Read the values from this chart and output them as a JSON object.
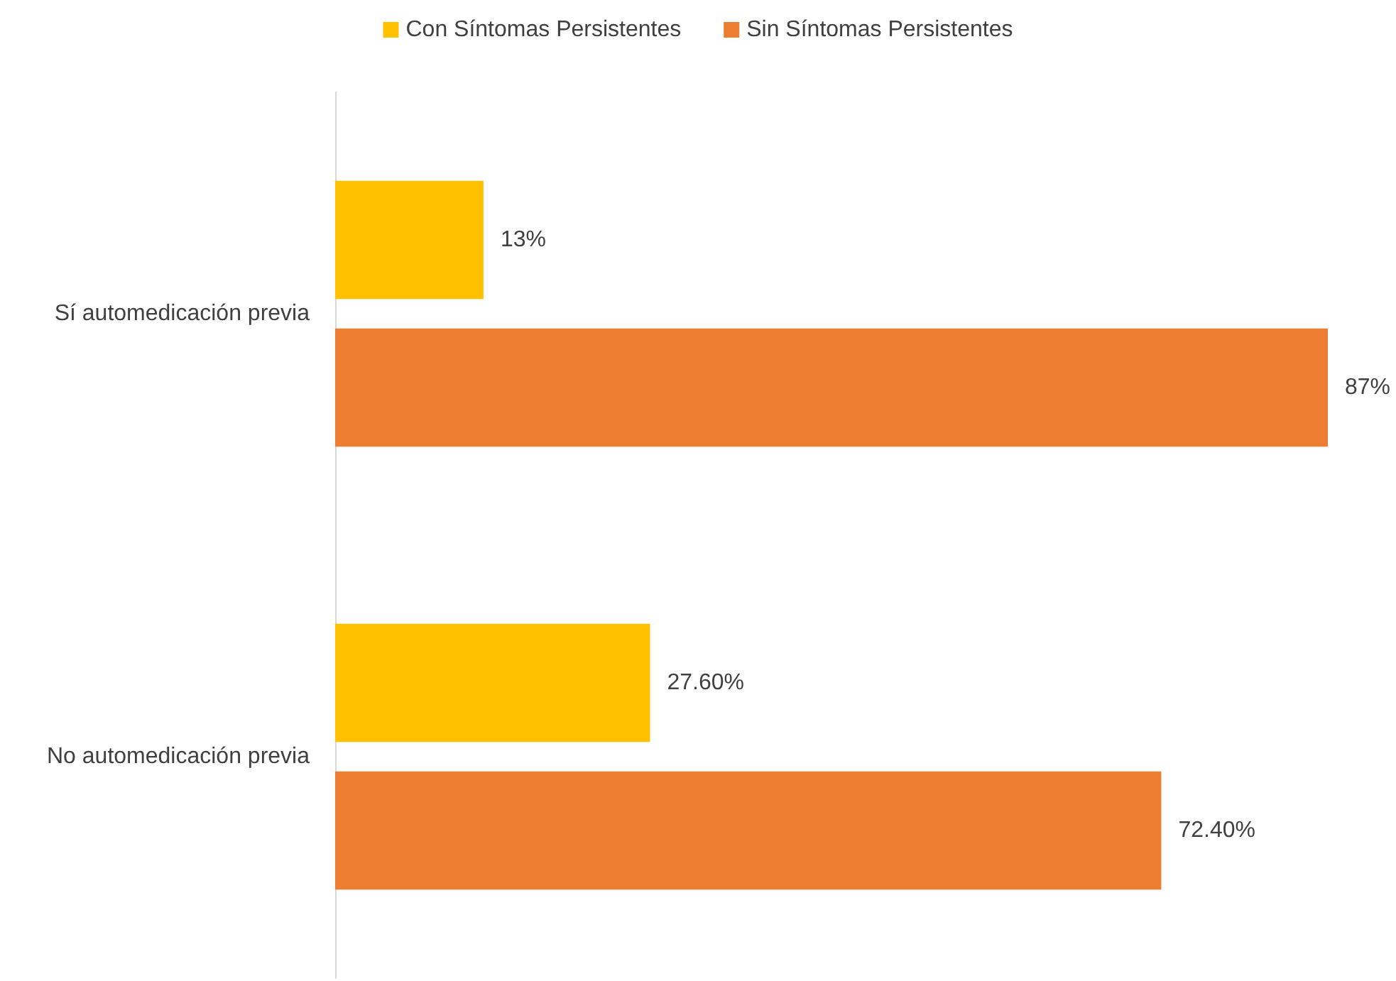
{
  "chart_data": {
    "type": "bar",
    "orientation": "horizontal",
    "categories": [
      "Sí automedicación previa",
      "No automedicación previa"
    ],
    "series": [
      {
        "name": "Con Síntomas Persistentes",
        "color": "#ffc000",
        "values": [
          13,
          27.6
        ],
        "value_labels": [
          "13%",
          "27.60%"
        ]
      },
      {
        "name": "Sin Síntomas Persistentes",
        "color": "#ed7d31",
        "values": [
          87,
          72.4
        ],
        "value_labels": [
          "87%",
          "72.40%"
        ]
      }
    ],
    "legend": "top",
    "grid": false
  }
}
